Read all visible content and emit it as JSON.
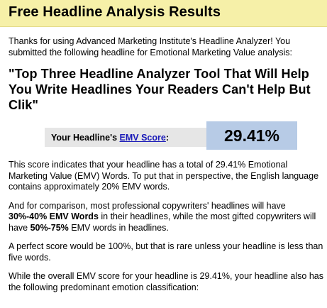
{
  "header": {
    "title": "Free Headline Analysis Results"
  },
  "intro": "Thanks for using Advanced Marketing Institute's Headline Analyzer! You submitted the following headline for Emotional Marketing Value analysis:",
  "headline": "\"Top Three Headline Analyzer Tool That Will Help You Write Headlines Your Readers Can't Help But Clik\"",
  "score": {
    "label_prefix": "Your Headline's ",
    "link_text": "EMV Score",
    "label_suffix": ":",
    "value": "29.41%",
    "value_pct": 29.41
  },
  "paragraphs": {
    "p1": "This score indicates that your headline has a total of 29.41% Emotional Marketing Value (EMV) Words. To put that in perspective, the English language contains approximately 20% EMV words.",
    "p2_a": "And for comparison, most professional copywriters' headlines will have ",
    "p2_b": "30%-40% EMV Words",
    "p2_c": " in their headlines, while the most gifted copywriters will have ",
    "p2_d": "50%-75%",
    "p2_e": " EMV words in headlines.",
    "p3": "A perfect score would be 100%, but that is rare unless your headline is less than five words.",
    "p4": "While the overall EMV score for your headline is 29.41%, your headline also has the following predominant emotion classification:"
  },
  "colors": {
    "header_bg": "#f6f0a8",
    "score_label_bg": "#e6e6e6",
    "score_value_bg": "#b7cbe6",
    "link": "#1a1ab8"
  }
}
